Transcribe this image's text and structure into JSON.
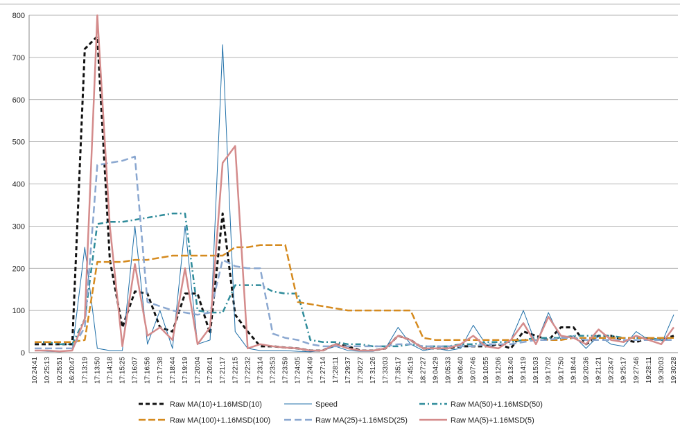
{
  "chart_data": {
    "type": "line",
    "categories": [
      "10:24:41",
      "10:25:13",
      "10:25:51",
      "16:20:47",
      "17:13:19",
      "17:13:50",
      "17:14:18",
      "17:15:25",
      "17:16:07",
      "17:16:56",
      "17:17:38",
      "17:18:44",
      "17:19:19",
      "17:20:04",
      "17:20:41",
      "17:21:17",
      "17:22:15",
      "17:22:32",
      "17:23:14",
      "17:23:53",
      "17:23:59",
      "17:24:05",
      "17:24:49",
      "17:27:14",
      "17:28:11",
      "17:29:37",
      "17:30:27",
      "17:31:26",
      "17:33:03",
      "17:35:17",
      "17:45:19",
      "18:27:27",
      "19:04:29",
      "19:05:33",
      "19:06:40",
      "19:07:46",
      "19:10:55",
      "19:12:06",
      "19:13:40",
      "19:14:19",
      "19:15:03",
      "19:17:02",
      "19:17:50",
      "19:18:44",
      "19:20:36",
      "19:21:21",
      "19:23:47",
      "19:25:17",
      "19:27:46",
      "19:28:11",
      "19:30:03",
      "19:30:28"
    ],
    "ylim": [
      0,
      800
    ],
    "yticks": [
      0,
      100,
      200,
      300,
      400,
      500,
      600,
      700,
      800
    ],
    "grid": true,
    "series": [
      {
        "name": "Raw MA(10)+1.16MSD(10)",
        "color": "#111111",
        "dash": "6,4",
        "width": 3,
        "values": [
          20,
          20,
          20,
          20,
          720,
          750,
          220,
          60,
          145,
          140,
          60,
          50,
          140,
          140,
          45,
          330,
          90,
          50,
          15,
          15,
          12,
          10,
          5,
          5,
          20,
          15,
          5,
          5,
          10,
          40,
          30,
          10,
          10,
          10,
          15,
          15,
          15,
          20,
          10,
          50,
          40,
          30,
          60,
          60,
          20,
          40,
          40,
          30,
          25,
          35,
          30,
          40
        ]
      },
      {
        "name": "Speed",
        "color": "#1f6fa8",
        "dash": "",
        "width": 1,
        "values": [
          5,
          3,
          2,
          5,
          250,
          10,
          5,
          5,
          300,
          20,
          100,
          10,
          300,
          20,
          30,
          730,
          50,
          10,
          5,
          5,
          5,
          3,
          2,
          5,
          15,
          5,
          3,
          3,
          10,
          60,
          20,
          5,
          10,
          5,
          10,
          65,
          20,
          10,
          30,
          100,
          20,
          95,
          30,
          40,
          10,
          40,
          20,
          15,
          50,
          30,
          20,
          90
        ]
      },
      {
        "name": "Raw MA(50)+1.16MSD(50)",
        "color": "#2e8b9a",
        "dash": "8,4,2,4",
        "width": 2.5,
        "values": [
          25,
          25,
          20,
          20,
          80,
          305,
          310,
          310,
          315,
          320,
          325,
          330,
          330,
          100,
          95,
          95,
          160,
          160,
          160,
          145,
          140,
          140,
          30,
          25,
          25,
          20,
          20,
          15,
          15,
          15,
          20,
          15,
          15,
          15,
          20,
          20,
          25,
          25,
          25,
          30,
          35,
          35,
          35,
          40,
          40,
          40,
          40,
          35,
          35,
          35,
          30,
          30
        ]
      },
      {
        "name": "Raw MA(100)+1.16MSD(100)",
        "color": "#d58a1e",
        "dash": "10,4",
        "width": 2.5,
        "values": [
          25,
          25,
          25,
          25,
          30,
          215,
          215,
          215,
          220,
          220,
          225,
          230,
          230,
          230,
          230,
          230,
          250,
          250,
          255,
          255,
          255,
          120,
          115,
          110,
          105,
          100,
          100,
          100,
          100,
          100,
          100,
          35,
          30,
          30,
          30,
          30,
          30,
          30,
          30,
          30,
          30,
          30,
          30,
          35,
          35,
          35,
          35,
          35,
          35,
          35,
          35,
          35
        ]
      },
      {
        "name": "Raw MA(25)+1.16MSD(25)",
        "color": "#8aa7d0",
        "dash": "10,5",
        "width": 2.5,
        "values": [
          10,
          10,
          10,
          10,
          60,
          445,
          450,
          455,
          465,
          120,
          110,
          100,
          95,
          90,
          95,
          220,
          205,
          200,
          200,
          45,
          35,
          30,
          20,
          15,
          15,
          15,
          15,
          15,
          15,
          20,
          20,
          15,
          15,
          15,
          15,
          15,
          20,
          20,
          20,
          25,
          30,
          30,
          35,
          35,
          30,
          30,
          30,
          30,
          30,
          30,
          30,
          30
        ]
      },
      {
        "name": "Raw MA(5)+1.16MSD(5)",
        "color": "#d48b8b",
        "dash": "",
        "width": 2.5,
        "values": [
          5,
          5,
          3,
          5,
          80,
          800,
          300,
          15,
          210,
          40,
          60,
          30,
          200,
          20,
          60,
          450,
          490,
          10,
          20,
          15,
          12,
          10,
          5,
          5,
          20,
          10,
          5,
          5,
          10,
          40,
          30,
          10,
          10,
          10,
          20,
          40,
          15,
          10,
          30,
          70,
          20,
          85,
          40,
          35,
          20,
          55,
          30,
          25,
          40,
          30,
          20,
          60
        ]
      }
    ]
  }
}
